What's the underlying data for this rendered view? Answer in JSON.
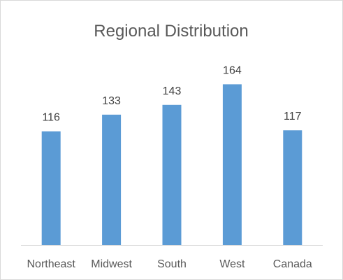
{
  "chart_data": {
    "type": "bar",
    "title": "Regional Distribution",
    "xlabel": "",
    "ylabel": "",
    "categories": [
      "Northeast",
      "Midwest",
      "South",
      "West",
      "Canada"
    ],
    "values": [
      116,
      133,
      143,
      164,
      117
    ],
    "data_labels": [
      "116",
      "133",
      "143",
      "164",
      "117"
    ],
    "ylim": [
      0,
      170
    ],
    "grid": false,
    "legend": "none",
    "bar_color": "#5b9bd5"
  }
}
